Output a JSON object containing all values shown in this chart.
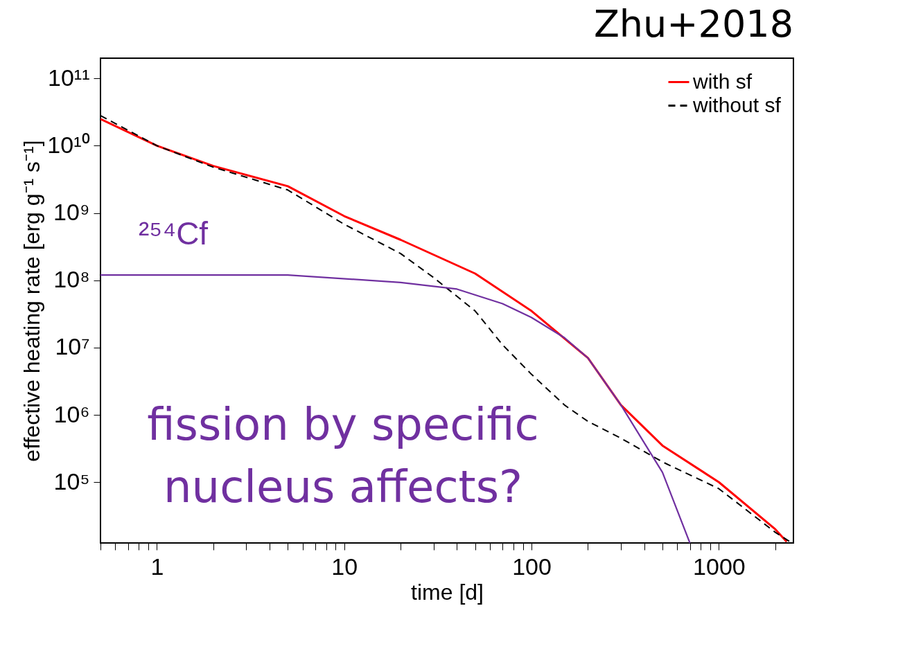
{
  "chart_data": {
    "type": "line",
    "title": "Zhu+2018",
    "xlabel": "time [d]",
    "ylabel": "effective heating rate [erg g⁻¹ s⁻¹]",
    "log": "xy",
    "grid": false,
    "legend": "top right",
    "marker": "none",
    "xlim": [
      0.5,
      2500
    ],
    "ylim": [
      12500,
      200000000000.0
    ],
    "xticks": [
      {
        "value": 0.5,
        "label": null
      },
      {
        "value": 0.6,
        "label": null
      },
      {
        "value": 0.7,
        "label": null
      },
      {
        "value": 0.8,
        "label": null
      },
      {
        "value": 0.9,
        "label": null
      },
      1,
      {
        "value": 2,
        "label": null
      },
      {
        "value": 3,
        "label": null
      },
      {
        "value": 4,
        "label": null
      },
      {
        "value": 5,
        "label": null
      },
      {
        "value": 6,
        "label": null
      },
      {
        "value": 7,
        "label": null
      },
      {
        "value": 8,
        "label": null
      },
      {
        "value": 9,
        "label": null
      },
      10,
      {
        "value": 20,
        "label": null
      },
      {
        "value": 30,
        "label": null
      },
      {
        "value": 40,
        "label": null
      },
      {
        "value": 50,
        "label": null
      },
      {
        "value": 60,
        "label": null
      },
      {
        "value": 70,
        "label": null
      },
      {
        "value": 80,
        "label": null
      },
      {
        "value": 90,
        "label": null
      },
      100,
      {
        "value": 200,
        "label": null
      },
      {
        "value": 300,
        "label": null
      },
      {
        "value": 400,
        "label": null
      },
      {
        "value": 500,
        "label": null
      },
      {
        "value": 600,
        "label": null
      },
      {
        "value": 700,
        "label": null
      },
      {
        "value": 800,
        "label": null
      },
      {
        "value": 900,
        "label": null
      },
      1000,
      {
        "value": 2000,
        "label": null
      }
    ],
    "yticks": [
      {
        "value": 100000.0,
        "label": "10⁵"
      },
      {
        "value": 1000000.0,
        "label": "10⁶"
      },
      {
        "value": 10000000.0,
        "label": "10⁷"
      },
      {
        "value": 100000000.0,
        "label": "10⁸"
      },
      {
        "value": 1000000000.0,
        "label": "10⁹"
      },
      {
        "value": 10000000000.0,
        "label": "10¹⁰"
      },
      {
        "value": 100000000000.0,
        "label": "10¹¹"
      }
    ],
    "series": [
      {
        "name": "with sf",
        "color": "#ff0000",
        "line_style": "solid",
        "x": [
          0.5,
          1,
          2,
          5,
          10,
          20,
          50,
          100,
          200,
          300,
          500,
          1000,
          2000,
          2300
        ],
        "values": [
          25000000000.0,
          10000000000.0,
          5000000000.0,
          2500000000.0,
          900000000.0,
          400000000.0,
          126000000.0,
          35000000.0,
          7000000.0,
          1400000.0,
          350000.0,
          100000.0,
          20000.0,
          13000.0
        ]
      },
      {
        "name": "without sf",
        "color": "#000000",
        "line_style": "dashed",
        "x": [
          0.5,
          1,
          2,
          5,
          10,
          20,
          30,
          50,
          70,
          100,
          150,
          200,
          300,
          500,
          1000,
          2000,
          2400
        ],
        "values": [
          28000000000.0,
          10000000000.0,
          4800000000.0,
          2200000000.0,
          680000000.0,
          250000000.0,
          110000000.0,
          35000000.0,
          11000000.0,
          4000000.0,
          1400000.0,
          800000.0,
          450000.0,
          200000.0,
          80000.0,
          18000.0,
          13000.0
        ]
      },
      {
        "color": "#7030a0",
        "line_style": "solid",
        "x": [
          0.5,
          5,
          20,
          40,
          70,
          100,
          150,
          200,
          300,
          500,
          700
        ],
        "values": [
          120000000.0,
          120000000.0,
          93000000.0,
          74000000.0,
          45000000.0,
          28000000.0,
          14000000.0,
          7000000.0,
          1400000.0,
          140000.0,
          12500.0
        ]
      }
    ],
    "annotations": [
      "²⁵⁴Cf",
      "fission by specific\nnucleus affects?"
    ]
  }
}
